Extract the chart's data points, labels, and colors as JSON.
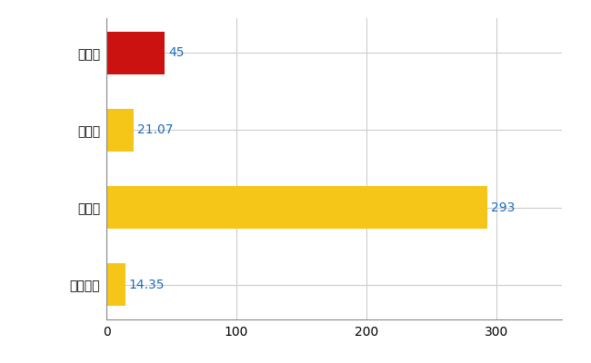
{
  "categories": [
    "豊川市",
    "県平均",
    "県最大",
    "全国平均"
  ],
  "values": [
    45,
    21.07,
    293,
    14.35
  ],
  "bar_colors": [
    "#cc1111",
    "#f5c518",
    "#f5c518",
    "#f5c518"
  ],
  "value_labels": [
    "45",
    "21.07",
    "293",
    "14.35"
  ],
  "label_color": "#1a6bbd",
  "xlim": [
    0,
    350
  ],
  "xticks": [
    0,
    100,
    200,
    300
  ],
  "grid_color": "#cccccc",
  "background_color": "#ffffff",
  "bar_height": 0.55,
  "label_fontsize": 10,
  "tick_fontsize": 10
}
